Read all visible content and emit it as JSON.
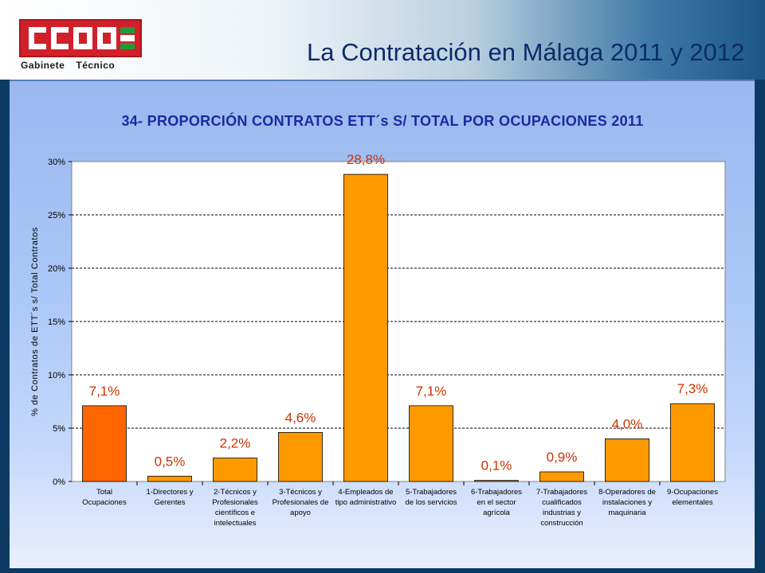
{
  "header": {
    "logo_text": "CCOO",
    "logo_sub_1": "Gabinete",
    "logo_sub_2": "Técnico",
    "title": "La Contratación en Málaga 2011 y 2012"
  },
  "colors": {
    "highlight_bar": "#ff6600",
    "bar": "#ff9900",
    "label": "#cc3300",
    "title": "#1a2aa0"
  },
  "chart_data": {
    "type": "bar",
    "title": "34- PROPORCIÓN CONTRATOS ETT´s S/ TOTAL POR OCUPACIONES 2011",
    "ylabel": "% de Contratos de ETT´s s/ Total Contratos",
    "xlabel": "",
    "ylim": [
      0,
      30
    ],
    "yticks": [
      "0%",
      "5%",
      "10%",
      "15%",
      "20%",
      "25%",
      "30%"
    ],
    "grid": true,
    "categories": [
      [
        "Total",
        "Ocupaciones"
      ],
      [
        "1-Directores y",
        "Gerentes"
      ],
      [
        "2-Técnicos y",
        "Profesionales",
        "científicos e",
        "intelectuales"
      ],
      [
        "3-Técnicos y",
        "Profesionales de",
        "apoyo"
      ],
      [
        "4-Empleados de",
        "tipo administrativo"
      ],
      [
        "5-Trabajadores",
        "de los servicios"
      ],
      [
        "6-Trabajadores",
        "en el sector",
        "agrícola"
      ],
      [
        "7-Trabajadores",
        "cualificados",
        "industrias y",
        "construcción"
      ],
      [
        "8-Operadores de",
        "instalaciones y",
        "maquinaria"
      ],
      [
        "9-Ocupaciones",
        "elementales"
      ]
    ],
    "values": [
      7.1,
      0.5,
      2.2,
      4.6,
      28.8,
      7.1,
      0.1,
      0.9,
      4.0,
      7.3
    ],
    "data_labels": [
      "7,1%",
      "0,5%",
      "2,2%",
      "4,6%",
      "28,8%",
      "7,1%",
      "0,1%",
      "0,9%",
      "4,0%",
      "7,3%"
    ]
  }
}
